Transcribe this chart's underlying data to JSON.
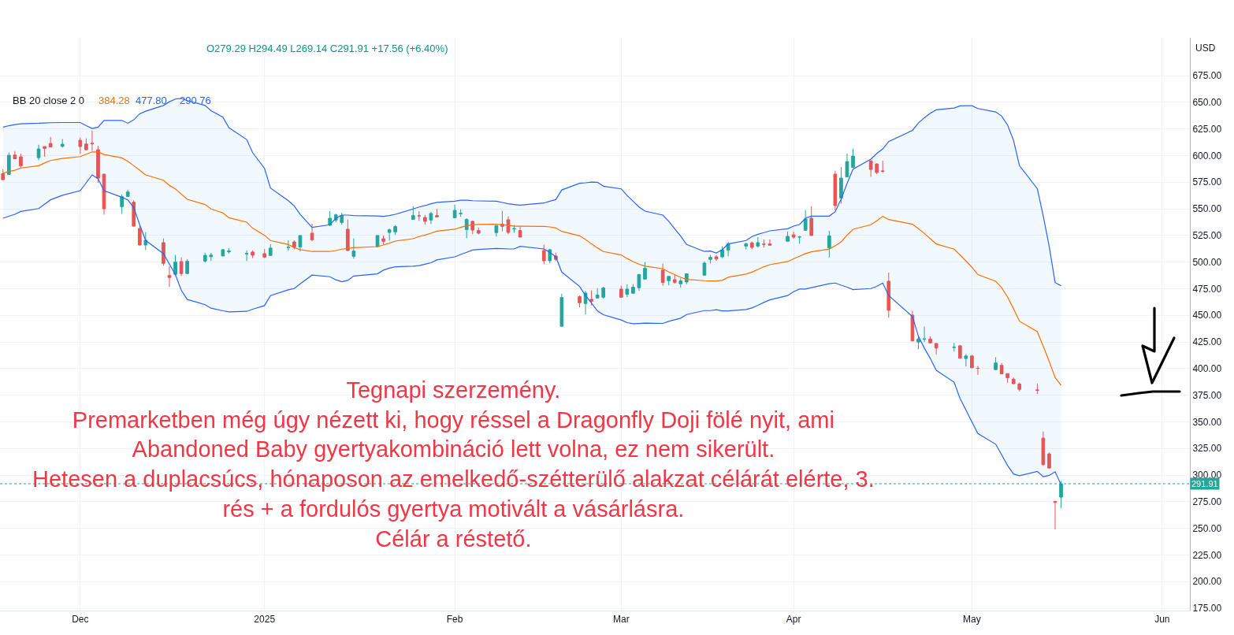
{
  "chart_data": {
    "type": "candlestick",
    "x": [
      "2024-11-19",
      "2024-11-20",
      "2024-11-21",
      "2024-11-22",
      "2024-11-25",
      "2024-11-26",
      "2024-11-27",
      "2024-11-29",
      "2024-12-02",
      "2024-12-03",
      "2024-12-04",
      "2024-12-05",
      "2024-12-06",
      "2024-12-09",
      "2024-12-10",
      "2024-12-11",
      "2024-12-12",
      "2024-12-13",
      "2024-12-16",
      "2024-12-17",
      "2024-12-18",
      "2024-12-19",
      "2024-12-20",
      "2024-12-23",
      "2024-12-24",
      "2024-12-26",
      "2024-12-27",
      "2024-12-30",
      "2024-12-31",
      "2025-01-02",
      "2025-01-03",
      "2025-01-06",
      "2025-01-07",
      "2025-01-08",
      "2025-01-10",
      "2025-01-13",
      "2025-01-14",
      "2025-01-15",
      "2025-01-16",
      "2025-01-17",
      "2025-01-21",
      "2025-01-22",
      "2025-01-23",
      "2025-01-24",
      "2025-01-27",
      "2025-01-28",
      "2025-01-29",
      "2025-01-30",
      "2025-01-31",
      "2025-02-03",
      "2025-02-04",
      "2025-02-05",
      "2025-02-06",
      "2025-02-07",
      "2025-02-10",
      "2025-02-11",
      "2025-02-12",
      "2025-02-13",
      "2025-02-14",
      "2025-02-18",
      "2025-02-19",
      "2025-02-20",
      "2025-02-21",
      "2025-02-24",
      "2025-02-25",
      "2025-02-26",
      "2025-02-27",
      "2025-02-28",
      "2025-03-03",
      "2025-03-04",
      "2025-03-05",
      "2025-03-06",
      "2025-03-07",
      "2025-03-10",
      "2025-03-11",
      "2025-03-12",
      "2025-03-13",
      "2025-03-14",
      "2025-03-17",
      "2025-03-18",
      "2025-03-19",
      "2025-03-20",
      "2025-03-21",
      "2025-03-24",
      "2025-03-25",
      "2025-03-26",
      "2025-03-27",
      "2025-03-28",
      "2025-03-31",
      "2025-04-01",
      "2025-04-02",
      "2025-04-03",
      "2025-04-04",
      "2025-04-07",
      "2025-04-08",
      "2025-04-09",
      "2025-04-10",
      "2025-04-11",
      "2025-04-14",
      "2025-04-15",
      "2025-04-16",
      "2025-04-17",
      "2025-04-21",
      "2025-04-22",
      "2025-04-23",
      "2025-04-24",
      "2025-04-25",
      "2025-04-28",
      "2025-04-29",
      "2025-04-30",
      "2025-05-01",
      "2025-05-02",
      "2025-05-05",
      "2025-05-06",
      "2025-05-07",
      "2025-05-08",
      "2025-05-09",
      "2025-05-12",
      "2025-05-13",
      "2025-05-14",
      "2025-05-15",
      "2025-05-16"
    ],
    "ohlc": [
      [
        583.0,
        587.2,
        577.0,
        577.3
      ],
      [
        582.3,
        602.7,
        582.0,
        600.2
      ],
      [
        600.5,
        604.2,
        597.0,
        597.0
      ],
      [
        598.8,
        601.7,
        588.7,
        590.4
      ],
      [
        598.0,
        610.1,
        595.6,
        606.2
      ],
      [
        608.4,
        608.4,
        599.0,
        606.7
      ],
      [
        611.3,
        617.5,
        607.9,
        608.1
      ],
      [
        608.6,
        615.5,
        607.4,
        610.6
      ],
      [
        614.3,
        617.0,
        601.5,
        608.4
      ],
      [
        610.8,
        616.0,
        605.0,
        605.4
      ],
      [
        611.6,
        623.4,
        604.4,
        611.0
      ],
      [
        605.4,
        609.1,
        574.4,
        578.8
      ],
      [
        582.5,
        582.5,
        544.6,
        550.0
      ],
      [
        552.0,
        563.5,
        545.3,
        561.3
      ],
      [
        561.6,
        568.0,
        561.0,
        565.8
      ],
      [
        556.2,
        558.1,
        533.0,
        533.7
      ],
      [
        531.5,
        534.5,
        515.5,
        516.0
      ],
      [
        516.0,
        528.1,
        511.3,
        520.4
      ],
      [
        518.2,
        522.2,
        496.5,
        498.8
      ],
      [
        487.4,
        496.0,
        476.6,
        485.5
      ],
      [
        488.4,
        506.7,
        486.9,
        500.0
      ],
      [
        500.5,
        504.4,
        486.9,
        489.2
      ],
      [
        489.2,
        502.5,
        489.0,
        500.7
      ],
      [
        500.9,
        508.8,
        499.4,
        506.3
      ],
      [
        505.0,
        508.6,
        501.0,
        506.5
      ],
      [
        505.7,
        512.3,
        505.5,
        511.6
      ],
      [
        509.6,
        513.0,
        507.9,
        510.3
      ],
      [
        507.6,
        510.9,
        501.0,
        508.0
      ],
      [
        509.4,
        511.1,
        503.7,
        506.4
      ],
      [
        507.9,
        512.3,
        503.7,
        504.7
      ],
      [
        506.2,
        516.7,
        506.0,
        513.1
      ],
      [
        513.6,
        520.4,
        510.6,
        514.0
      ],
      [
        518.9,
        520.2,
        512.1,
        514.2
      ],
      [
        514.2,
        525.0,
        509.9,
        524.9
      ],
      [
        527.1,
        536.0,
        519.5,
        520.9
      ],
      [
        534.7,
        547.8,
        533.7,
        541.1
      ],
      [
        539.4,
        545.3,
        537.2,
        544.3
      ],
      [
        537.2,
        546.3,
        535.0,
        543.8
      ],
      [
        530.8,
        539.9,
        510.5,
        510.8
      ],
      [
        505.4,
        522.2,
        503.2,
        510.3
      ],
      [
        514.5,
        525.0,
        513.8,
        524.9
      ],
      [
        521.9,
        525.1,
        516.5,
        519.5
      ],
      [
        527.8,
        531.3,
        519.9,
        530.3
      ],
      [
        528.3,
        534.7,
        525.4,
        533.3
      ],
      [
        540.1,
        552.5,
        540.0,
        543.6
      ],
      [
        543.4,
        547.8,
        538.7,
        543.3
      ],
      [
        541.9,
        544.3,
        535.0,
        538.2
      ],
      [
        539.4,
        547.0,
        535.7,
        545.6
      ],
      [
        543.6,
        549.8,
        542.3,
        542.4
      ],
      [
        541.6,
        553.9,
        541.5,
        548.5
      ],
      [
        545.4,
        549.5,
        542.4,
        545.6
      ],
      [
        530.5,
        541.1,
        522.4,
        539.9
      ],
      [
        538.2,
        538.9,
        526.1,
        530.0
      ],
      [
        529.6,
        532.3,
        525.9,
        527.1
      ],
      [
        527.6,
        534.5,
        523.9,
        534.0
      ],
      [
        535.5,
        548.0,
        528.8,
        533.5
      ],
      [
        539.7,
        542.9,
        526.1,
        527.8
      ],
      [
        531.2,
        534.7,
        527.6,
        531.3
      ],
      [
        529.6,
        533.3,
        523.2,
        523.4
      ],
      [
        510.8,
        516.3,
        498.0,
        501.2
      ],
      [
        501.2,
        512.3,
        498.8,
        511.6
      ],
      [
        505.7,
        508.9,
        501.0,
        502.5
      ],
      [
        439.7,
        470.2,
        439.2,
        466.7
      ],
      [
        467.5,
        468.5,
        457.4,
        461.8
      ],
      [
        461.1,
        472.9,
        450.7,
        470.9
      ],
      [
        465.0,
        473.4,
        459.1,
        463.3
      ],
      [
        466.3,
        475.6,
        465.5,
        469.0
      ],
      [
        467.0,
        476.8,
        465.5,
        475.6
      ],
      [
        474.6,
        477.8,
        466.5,
        467.0
      ],
      [
        469.7,
        479.1,
        467.0,
        474.6
      ],
      [
        470.7,
        479.3,
        470.5,
        476.4
      ],
      [
        475.9,
        488.9,
        472.9,
        488.2
      ],
      [
        484.0,
        500.0,
        483.8,
        494.1
      ],
      [
        492.4,
        498.5,
        477.8,
        480.8
      ],
      [
        482.5,
        486.6,
        478.1,
        486.5
      ],
      [
        483.5,
        488.2,
        479.6,
        481.0
      ],
      [
        479.6,
        484.7,
        475.9,
        482.3
      ],
      [
        481.3,
        489.4,
        479.1,
        488.9
      ],
      [
        487.7,
        500.7,
        487.0,
        499.0
      ],
      [
        502.5,
        506.7,
        498.8,
        504.4
      ],
      [
        504.9,
        506.7,
        501.0,
        502.9
      ],
      [
        504.9,
        514.8,
        503.7,
        511.3
      ],
      [
        511.3,
        519.2,
        505.4,
        517.0
      ],
      [
        515.0,
        518.2,
        511.8,
        517.0
      ],
      [
        518.0,
        519.2,
        512.1,
        513.8
      ],
      [
        515.0,
        523.4,
        513.5,
        518.2
      ],
      [
        516.9,
        521.2,
        513.5,
        516.7
      ],
      [
        517.0,
        521.2,
        515.7,
        515.8
      ],
      [
        519.5,
        528.6,
        519.4,
        524.1
      ],
      [
        525.6,
        528.6,
        521.9,
        523.4
      ],
      [
        523.5,
        524.6,
        517.2,
        523.6
      ],
      [
        529.8,
        548.8,
        529.7,
        540.4
      ],
      [
        541.1,
        552.5,
        524.8,
        524.9
      ],
      [
        513.3,
        529.4,
        504.3,
        524.6
      ],
      [
        582.5,
        585.7,
        548.3,
        553.0
      ],
      [
        560.1,
        589.2,
        554.9,
        578.8
      ],
      [
        580.0,
        602.0,
        579.9,
        594.3
      ],
      [
        588.9,
        606.4,
        588.8,
        599.5
      ],
      [
        595.1,
        595.2,
        580.0,
        586.9
      ],
      [
        592.1,
        592.6,
        582.5,
        584.0
      ],
      [
        585.5,
        595.1,
        583.7,
        585.3
      ],
      [
        482.0,
        490.1,
        447.8,
        454.7
      ],
      [
        450.2,
        454.2,
        425.8,
        425.9
      ],
      [
        424.9,
        429.8,
        418.2,
        427.8
      ],
      [
        427.5,
        439.4,
        424.9,
        427.8
      ],
      [
        427.8,
        430.3,
        424.0,
        424.1
      ],
      [
        423.6,
        423.7,
        413.1,
        419.2
      ],
      [
        419.8,
        424.1,
        416.0,
        420.0
      ],
      [
        421.4,
        422.2,
        409.5,
        409.6
      ],
      [
        409.4,
        413.6,
        402.0,
        411.8
      ],
      [
        411.8,
        412.8,
        400.6,
        400.7
      ],
      [
        400.3,
        402.5,
        394.1,
        400.2
      ],
      [
        399.0,
        410.6,
        398.9,
        405.2
      ],
      [
        403.0,
        405.2,
        395.0,
        395.1
      ],
      [
        395.3,
        395.4,
        386.5,
        391.4
      ],
      [
        390.0,
        391.6,
        385.5,
        385.8
      ],
      [
        385.5,
        386.9,
        378.5,
        380.5
      ],
      [
        380.0,
        385.9,
        376.2,
        379.5
      ],
      [
        334.7,
        340.9,
        308.5,
        309.9
      ],
      [
        319.9,
        321.3,
        306.5,
        306.6
      ],
      [
        275.2,
        276.0,
        248.9,
        274.35
      ],
      [
        279.29,
        294.49,
        269.14,
        291.91
      ]
    ],
    "series": [
      {
        "type": "line",
        "color": "#2962ff",
        "values": [
          626.6,
          628,
          629,
          629.8,
          630.3,
          630.6,
          630.8,
          631.0,
          631.0,
          628,
          625.4,
          626.6,
          633.0,
          633.0,
          630.3,
          633.5,
          639.2,
          641.6,
          647.0,
          650.5,
          653.0,
          653.7,
          651.5,
          647.0,
          642.1,
          636.0,
          626.1,
          615.0,
          602.7,
          587.9,
          569.5,
          557.6,
          552.7,
          544.8,
          532.5,
          535.0,
          541.1,
          544.1,
          544.1,
          543.6,
          543.3,
          542.9,
          543.6,
          544.8,
          549.8,
          551.7,
          553.0,
          554.7,
          556.0,
          557.1,
          558.1,
          558.1,
          557.6,
          557.4,
          557.1,
          555.9,
          554.7,
          554.0,
          553.4,
          555.4,
          557.1,
          558.6,
          567.7,
          573.9,
          574.4,
          575.1,
          574.9,
          571.2,
          568.7,
          562.5,
          557.1,
          551.7,
          547.8,
          544.1,
          538.2,
          531.3,
          524.4,
          516.5,
          509.9,
          510.3,
          508.6,
          511.6,
          517.0,
          520.2,
          523.9,
          526.1,
          527.6,
          529.3,
          531.3,
          533.7,
          535.2,
          541.1,
          543.1,
          543.1,
          547.3,
          559.1,
          573.9,
          587.2,
          596.6,
          602.0,
          606.2,
          613.1,
          623.6,
          630.5,
          635.5,
          639.7,
          642.9,
          644.6,
          646.6,
          646.8,
          646.8,
          644.1,
          640.9,
          637.0,
          628.6,
          614.3,
          590.5,
          568.9,
          543.3,
          514.8,
          480.7,
          477.8
        ]
      },
      {
        "type": "line",
        "color": "#ff6d00",
        "values": [
          583.5,
          585,
          586.2,
          588.3,
          590.4,
          593,
          595.3,
          597.2,
          599.0,
          601.2,
          603.4,
          603.4,
          601.0,
          597.8,
          594.6,
          590.4,
          586.2,
          581.8,
          576.8,
          571.9,
          568.7,
          563.8,
          558.9,
          554.0,
          549.8,
          546.1,
          541.6,
          537.4,
          531.8,
          525.1,
          520.2,
          516.5,
          513.5,
          511.6,
          509.9,
          509.9,
          510.8,
          512.1,
          512.8,
          513.5,
          514.5,
          516.0,
          517.7,
          519.7,
          521.9,
          523.9,
          525.3,
          527.1,
          529.0,
          530.8,
          532.5,
          534.2,
          535.0,
          535.3,
          535.5,
          535.0,
          534.5,
          533.7,
          533.7,
          533.5,
          533.0,
          532.0,
          528.8,
          524.6,
          521.1,
          517.0,
          513.3,
          509.9,
          506.7,
          503.3,
          500.5,
          498.0,
          496.1,
          493.8,
          490.6,
          488.2,
          485.7,
          483.7,
          482.5,
          482.3,
          482.3,
          482.8,
          485.7,
          488.7,
          490.6,
          493.1,
          495.6,
          497.5,
          500.5,
          503.0,
          505.4,
          507.9,
          509.6,
          512.2,
          515.3,
          519.0,
          525.1,
          530.8,
          535.0,
          538.7,
          542.9,
          539.9,
          535.5,
          531.3,
          526.8,
          521.9,
          517.0,
          512.1,
          506.7,
          501.0,
          495.1,
          488.2,
          482.0,
          475.9,
          467.2,
          456.3,
          444.5,
          434.6,
          420.9,
          406.7,
          391.6,
          384.28
        ],
        "upper": [
          626.6,
          628,
          629,
          629.8,
          630.3,
          630.6,
          630.8,
          631.0,
          631.0,
          628,
          625.4,
          626.6,
          633.0,
          633.0,
          630.3,
          633.5,
          639.2,
          641.6,
          647.0,
          650.5,
          653.0,
          653.7,
          651.5,
          647.0,
          642.1,
          636.0,
          626.1,
          615.0,
          602.7,
          587.9,
          569.5,
          557.6,
          552.7,
          544.8,
          532.5,
          535.0,
          541.1,
          544.1,
          544.1,
          543.6,
          543.3,
          542.9,
          543.6,
          544.8,
          549.8,
          551.7,
          553.0,
          554.7,
          556.0,
          557.1,
          558.1,
          558.1,
          557.6,
          557.4,
          557.1,
          555.9,
          554.7,
          554.0,
          553.4,
          555.4,
          557.1,
          558.6,
          567.7,
          573.9,
          574.4,
          575.1,
          574.9,
          571.2,
          568.7,
          562.5,
          557.1,
          551.7,
          547.8,
          544.1,
          538.2,
          531.3,
          524.4,
          516.5,
          509.9,
          510.3,
          508.6,
          511.6,
          517.0,
          520.2,
          523.9,
          526.1,
          527.6,
          529.3,
          531.3,
          533.7,
          535.2,
          541.1,
          543.1,
          543.1,
          547.3,
          559.1,
          573.9,
          587.2,
          596.6,
          602.0,
          606.2,
          613.1,
          623.6,
          630.5,
          635.5,
          639.7,
          642.9,
          644.6,
          646.6,
          646.8,
          646.8,
          644.1,
          640.9,
          637.0,
          628.6,
          614.3,
          590.5,
          568.9,
          543.3,
          514.8,
          480.7,
          477.8
        ],
        "lower": [
          541.1,
          543,
          544.8,
          547.5,
          550.2,
          554.3,
          558.4,
          562.7,
          567.0,
          574.4,
          581.8,
          578.1,
          567.0,
          560.8,
          558.4,
          551.0,
          535.0,
          520.2,
          507.9,
          498.0,
          488.2,
          473.4,
          464.8,
          460.0,
          456.7,
          454.2,
          453.2,
          453.7,
          455.7,
          459.1,
          468.5,
          473.9,
          475.1,
          479.6,
          487.7,
          486.2,
          483.3,
          481.5,
          482.8,
          486.9,
          488.9,
          492.4,
          494.3,
          495.6,
          496.1,
          496.6,
          498.0,
          499.3,
          502.0,
          504.9,
          507.1,
          509.1,
          511.3,
          511.8,
          512.8,
          512.6,
          512.3,
          512.3,
          514.8,
          512.3,
          509.1,
          504.9,
          490.6,
          477.1,
          468.5,
          461.6,
          454.2,
          450.5,
          445.6,
          443.1,
          442.1,
          442.3,
          442.6,
          442.4,
          444.3,
          445.8,
          447.3,
          450.7,
          454.4,
          454.4,
          455.2,
          454.2,
          454.2,
          455.4,
          456.9,
          459.4,
          462.1,
          464.5,
          468.5,
          472.2,
          474.6,
          474.6,
          475.9,
          479.6,
          480.3,
          478.3,
          476.4,
          474.1,
          475.1,
          477.1,
          480.3,
          468.5,
          448.8,
          430.3,
          419.2,
          409.4,
          398.3,
          387.2,
          372,
          361,
          350,
          339,
          329,
          319,
          309,
          301.0,
          299.4,
          303.4,
          298.5,
          299.7,
          303.1,
          290.76
        ]
      },
      {
        "type": "line",
        "color": "#2962ff",
        "values": [
          541.1,
          543,
          544.8,
          547.5,
          550.2,
          554.3,
          558.4,
          562.7,
          567.0,
          574.4,
          581.8,
          578.1,
          567.0,
          560.8,
          558.4,
          551.0,
          535.0,
          520.2,
          507.9,
          498.0,
          488.2,
          473.4,
          464.8,
          460.0,
          456.7,
          454.2,
          453.2,
          453.7,
          455.7,
          459.1,
          468.5,
          473.9,
          475.1,
          479.6,
          487.7,
          486.2,
          483.3,
          481.5,
          482.8,
          486.9,
          488.9,
          492.4,
          494.3,
          495.6,
          496.1,
          496.6,
          498.0,
          499.3,
          502.0,
          504.9,
          507.1,
          509.1,
          511.3,
          511.8,
          512.8,
          512.6,
          512.3,
          512.3,
          514.8,
          512.3,
          509.1,
          504.9,
          490.6,
          477.1,
          468.5,
          461.6,
          454.2,
          450.5,
          445.6,
          443.1,
          442.1,
          442.3,
          442.6,
          442.4,
          444.3,
          445.8,
          447.3,
          450.7,
          454.4,
          454.4,
          455.2,
          454.2,
          454.2,
          455.4,
          456.9,
          459.4,
          462.1,
          464.5,
          468.5,
          472.2,
          474.6,
          474.6,
          475.9,
          479.6,
          480.3,
          478.3,
          476.4,
          474.1,
          475.1,
          477.1,
          480.3,
          468.5,
          448.8,
          430.3,
          419.2,
          409.4,
          398.3,
          387.2,
          372,
          361,
          350,
          339,
          329,
          319,
          309,
          301.0,
          299.4,
          303.4,
          298.5,
          299.7,
          303.1,
          290.76
        ]
      }
    ],
    "xlim": [
      "2024-11-18T12:00",
      "2025-06-06T16:00"
    ],
    "xticks": [
      {
        "value": "2024-12-02",
        "label": "Dec"
      },
      {
        "value": "2025-01-02",
        "label": "2025"
      },
      {
        "value": "2025-02-03",
        "label": "Feb"
      },
      {
        "value": "2025-03-03",
        "label": "Mar"
      },
      {
        "value": "2025-04-01",
        "label": "Apr"
      },
      {
        "value": "2025-05-01",
        "label": "May"
      },
      {
        "value": "2025-06-02",
        "label": "Jun"
      }
    ],
    "ylim": [
      172.8,
      710.5
    ],
    "yticks": [
      {
        "value": 175,
        "label": "175.00"
      },
      {
        "value": 200,
        "label": "200.00"
      },
      {
        "value": 225,
        "label": "225.00"
      },
      {
        "value": 250,
        "label": "250.00"
      },
      {
        "value": 275,
        "label": "275.00"
      },
      {
        "value": 300,
        "label": "300.00"
      },
      {
        "value": 325,
        "label": "325.00"
      },
      {
        "value": 350,
        "label": "350.00"
      },
      {
        "value": 375,
        "label": "375.00"
      },
      {
        "value": 400,
        "label": "400.00"
      },
      {
        "value": 425,
        "label": "425.00"
      },
      {
        "value": 450,
        "label": "450.00"
      },
      {
        "value": 475,
        "label": "475.00"
      },
      {
        "value": 500,
        "label": "500.00"
      },
      {
        "value": 525,
        "label": "525.00"
      },
      {
        "value": 550,
        "label": "550.00"
      },
      {
        "value": 575,
        "label": "575.00"
      },
      {
        "value": 600,
        "label": "600.00"
      },
      {
        "value": 625,
        "label": "625.00"
      },
      {
        "value": 650,
        "label": "650.00"
      },
      {
        "value": 675,
        "label": "675.00"
      }
    ],
    "ylabel": "USD",
    "grid": true,
    "ref_lines": [
      {
        "axis": "y",
        "value": 291.91,
        "label": "291.91",
        "color": "#26a69a",
        "line_style": "dotted"
      }
    ],
    "annotations": [
      "O279.29 H294.49 L269.14 C291.91 +17.56 (+6.40%)",
      "BB 20 close 2 0",
      "384.28",
      "477.80",
      "290.76",
      "Tegnapi szerzemény.\nPremarketben még úgy nézett ki, hogy réssel a Dragonfly Doji fölé nyit, ami\nAbandoned Baby gyertyakombináció lett volna, ez nem sikerült.\nHetesen a duplacsúcs, hónaposon az emelkedő-szétterülő alakzat célárát elérte, 3.\nrés + a fordulós gyertya motivált a vásárlásra.\nCélár a réstető."
    ]
  }
}
